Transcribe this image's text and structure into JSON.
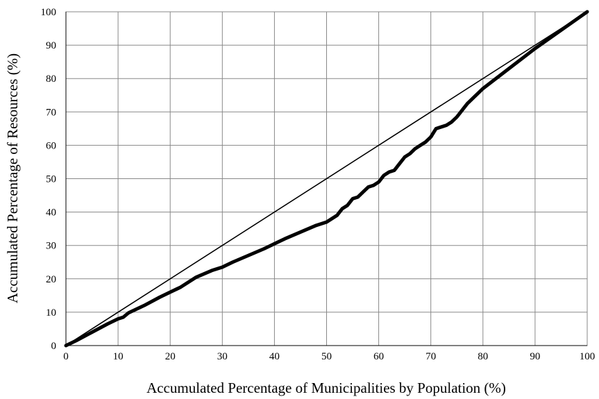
{
  "chart_data": {
    "type": "line",
    "title": "",
    "xlabel": "Accumulated Percentage of Municipalities by Population (%)",
    "ylabel": "Accumulated Percentage of Resources (%)",
    "xlim": [
      0,
      100
    ],
    "ylim": [
      0,
      100
    ],
    "x_ticks": [
      "0",
      "10",
      "20",
      "30",
      "40",
      "50",
      "60",
      "70",
      "80",
      "90",
      "100"
    ],
    "y_ticks": [
      "0",
      "10",
      "20",
      "30",
      "40",
      "50",
      "60",
      "70",
      "80",
      "90",
      "100"
    ],
    "grid": true,
    "legend": "none",
    "series": [
      {
        "style": "thin",
        "color": "#000000",
        "x": [
          0,
          100
        ],
        "y": [
          0,
          100
        ]
      },
      {
        "style": "thick",
        "color": "#000000",
        "x": [
          0,
          2,
          5,
          8,
          10,
          11,
          12,
          15,
          18,
          20,
          22,
          25,
          28,
          30,
          32,
          35,
          38,
          40,
          42,
          45,
          48,
          50,
          52,
          53,
          54,
          55,
          56,
          57,
          58,
          59,
          60,
          61,
          62,
          63,
          64,
          65,
          66,
          67,
          68,
          69,
          70,
          71,
          72,
          73,
          74,
          75,
          76,
          77,
          78,
          80,
          85,
          90,
          95,
          100
        ],
        "y": [
          0,
          1.5,
          4,
          6.5,
          8,
          8.5,
          9.8,
          12,
          14.5,
          16,
          17.5,
          20.5,
          22.5,
          23.5,
          25,
          27,
          29,
          30.5,
          32,
          34,
          36,
          37,
          39,
          41,
          42,
          44,
          44.5,
          46,
          47.5,
          48,
          49,
          51,
          52,
          52.5,
          54.5,
          56.5,
          57.5,
          59,
          60,
          61,
          62.5,
          65,
          65.5,
          66,
          67,
          68.5,
          70.5,
          72.5,
          74,
          77,
          83,
          89,
          94.5,
          100
        ]
      }
    ]
  }
}
